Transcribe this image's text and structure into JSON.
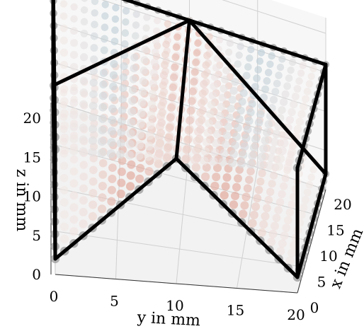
{
  "chart_data": {
    "type": "scatter",
    "projection": "3d",
    "title": "",
    "xlabel": "x in mm",
    "ylabel": "y in mm",
    "zlabel": "z in mm",
    "xlim": [
      0,
      20
    ],
    "ylim": [
      0,
      20
    ],
    "zlim": [
      0,
      22
    ],
    "xticks": [
      "0",
      "5",
      "10",
      "15",
      "20"
    ],
    "yticks": [
      "0",
      "5",
      "10",
      "15",
      "20"
    ],
    "zticks": [
      "0",
      "5",
      "10",
      "15",
      "20"
    ],
    "grid": true,
    "colormap": "diverging blue-white-red",
    "colors": {
      "negative": "#8fb8cb",
      "neutral": "#f1e7e4",
      "positive": "#d9826e",
      "frame": "#000000"
    },
    "structure": {
      "top_plate_z": 16,
      "base_z": 2,
      "frame_corners_xy": [
        [
          0,
          0
        ],
        [
          0,
          20
        ],
        [
          20,
          0
        ],
        [
          20,
          20
        ]
      ],
      "ridge_y": 10
    },
    "series": [
      {
        "name": "",
        "surface": "top-plate",
        "z": 16
      },
      {
        "name": "",
        "surface": "v-plate-left",
        "y_from": 0,
        "y_to": 10,
        "z_from": 2,
        "z_to": 16
      },
      {
        "name": "",
        "surface": "v-plate-right",
        "y_from": 10,
        "y_to": 20,
        "z_from": 16,
        "z_to": 2
      }
    ]
  }
}
